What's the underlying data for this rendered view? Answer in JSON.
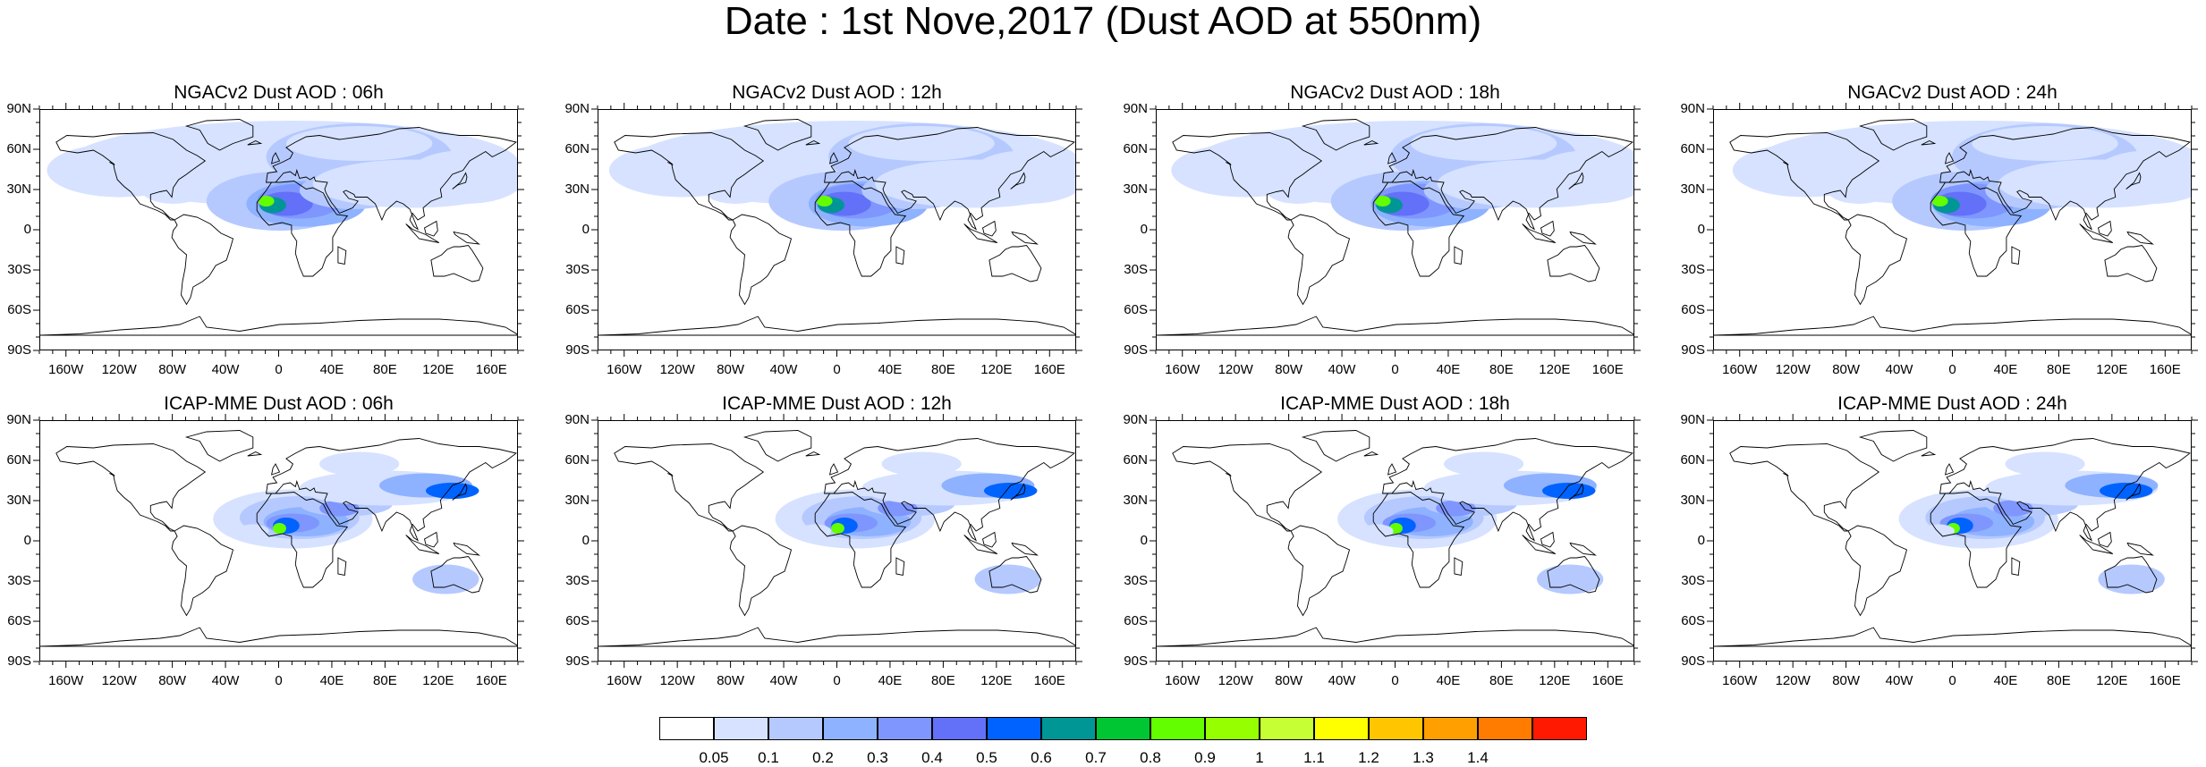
{
  "title": "Date : 1st Nove,2017 (Dust AOD at 550nm)",
  "panels": [
    {
      "title": "NGACv2 Dust AOD : 06h",
      "model": "NGACv2"
    },
    {
      "title": "NGACv2 Dust AOD : 12h",
      "model": "NGACv2"
    },
    {
      "title": "NGACv2 Dust AOD : 18h",
      "model": "NGACv2"
    },
    {
      "title": "NGACv2 Dust AOD : 24h",
      "model": "NGACv2"
    },
    {
      "title": "ICAP-MME Dust AOD : 06h",
      "model": "ICAP"
    },
    {
      "title": "ICAP-MME Dust AOD : 12h",
      "model": "ICAP"
    },
    {
      "title": "ICAP-MME Dust AOD : 18h",
      "model": "ICAP"
    },
    {
      "title": "ICAP-MME Dust AOD : 24h",
      "model": "ICAP"
    }
  ],
  "lat_labels": [
    "90N",
    "60N",
    "30N",
    "0",
    "30S",
    "60S",
    "90S"
  ],
  "lon_labels": [
    "160W",
    "120W",
    "80W",
    "40W",
    "0",
    "40E",
    "80E",
    "120E",
    "160E"
  ],
  "colorbar": {
    "levels": [
      "0.05",
      "0.1",
      "0.2",
      "0.3",
      "0.4",
      "0.5",
      "0.6",
      "0.7",
      "0.8",
      "0.9",
      "1",
      "1.1",
      "1.2",
      "1.3",
      "1.4"
    ],
    "colors": [
      "#ffffff",
      "#d6e2ff",
      "#b5c9ff",
      "#8eb2ff",
      "#7f96ff",
      "#6370f8",
      "#0063ff",
      "#009696",
      "#00c633",
      "#63ff00",
      "#96ff00",
      "#c6ff33",
      "#ffff00",
      "#ffc600",
      "#ffa000",
      "#ff7c00",
      "#ff1900"
    ]
  }
}
